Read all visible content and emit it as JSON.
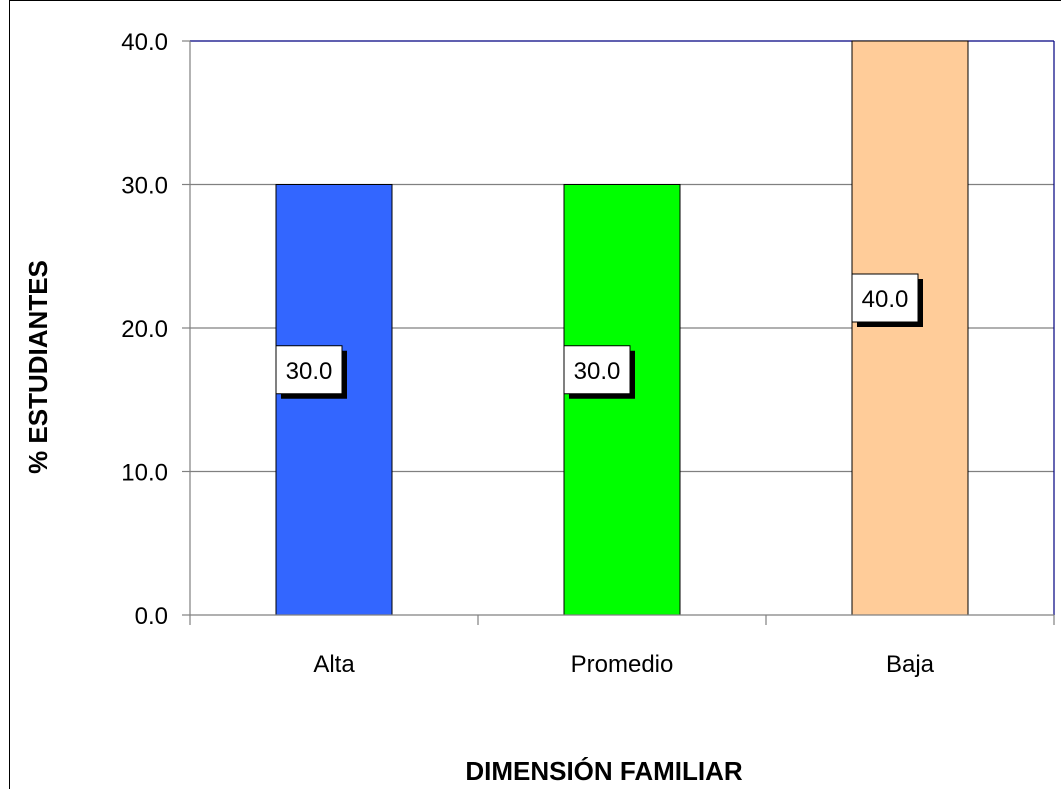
{
  "chart_data": {
    "type": "bar",
    "categories": [
      "Alta",
      "Promedio",
      "Baja"
    ],
    "values": [
      30.0,
      30.0,
      40.0
    ],
    "value_labels": [
      "30.0",
      "30.0",
      "40.0"
    ],
    "bar_colors": [
      "#3366ff",
      "#00ff00",
      "#ffcc99"
    ],
    "title": "",
    "xlabel": "DIMENSIÓN FAMILIAR",
    "ylabel": "% ESTUDIANTES",
    "ylim": [
      0,
      40
    ],
    "yticks": [
      "0.0",
      "10.0",
      "20.0",
      "30.0",
      "40.0"
    ],
    "grid": true,
    "gridline_color": "#808080",
    "plot_border_color": "#000080",
    "legend": "none"
  }
}
